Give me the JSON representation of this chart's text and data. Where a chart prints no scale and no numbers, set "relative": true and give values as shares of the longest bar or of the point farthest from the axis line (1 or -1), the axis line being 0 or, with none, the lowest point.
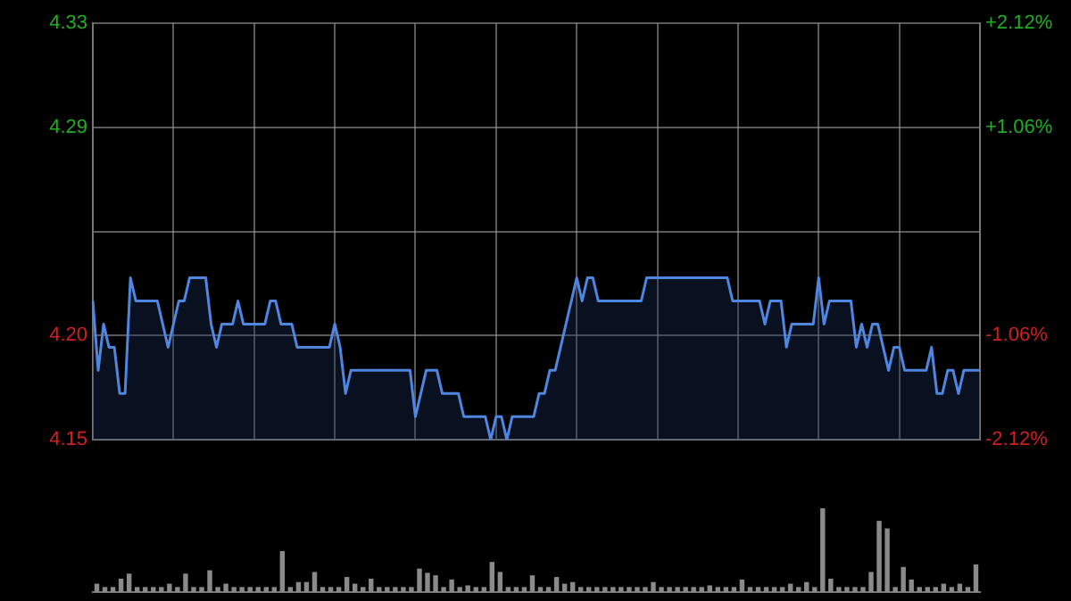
{
  "chart_data": [
    {
      "type": "area",
      "color": "#4f86e0",
      "categories": [
        null,
        null,
        null,
        null,
        null,
        null,
        null,
        null,
        null,
        null,
        null,
        null,
        null,
        null,
        null,
        null,
        null,
        null,
        null,
        null,
        null,
        null,
        null,
        null,
        null,
        null,
        null,
        null,
        null,
        null,
        null,
        null,
        null,
        null,
        null,
        null,
        null,
        null,
        null,
        null,
        null,
        null,
        null,
        null,
        null,
        null,
        null,
        null,
        null,
        null,
        null,
        null,
        null,
        null,
        null,
        null,
        null,
        null,
        null,
        null,
        null,
        null,
        null,
        null,
        null,
        null,
        null,
        null,
        null,
        null,
        null,
        null,
        null,
        null,
        null,
        null,
        null,
        null,
        null,
        null,
        null,
        null,
        null,
        null,
        null,
        null,
        null,
        null,
        null,
        null,
        null,
        null,
        null,
        null,
        null,
        null,
        null,
        null,
        null,
        null,
        null,
        null,
        null,
        null,
        null,
        null,
        null,
        null,
        null,
        null,
        null,
        null,
        null,
        null,
        null,
        null,
        null,
        null,
        null,
        null,
        null,
        null,
        null,
        null,
        null,
        null,
        null,
        null,
        null,
        null,
        null,
        null,
        null,
        null,
        null,
        null,
        null,
        null,
        null,
        null,
        null,
        null,
        null,
        null,
        null,
        null,
        null,
        null,
        null,
        null,
        null,
        null,
        null,
        null,
        null,
        null,
        null,
        null,
        null,
        null,
        null,
        null,
        null,
        null,
        null,
        null
      ],
      "values": [
        4.21,
        4.18,
        4.2,
        4.19,
        4.19,
        4.17,
        4.17,
        4.22,
        4.21,
        4.21,
        4.21,
        4.21,
        4.21,
        4.2,
        4.19,
        4.2,
        4.21,
        4.21,
        4.22,
        4.22,
        4.22,
        4.22,
        4.2,
        4.19,
        4.2,
        4.2,
        4.2,
        4.21,
        4.2,
        4.2,
        4.2,
        4.2,
        4.2,
        4.21,
        4.21,
        4.2,
        4.2,
        4.2,
        4.19,
        4.19,
        4.19,
        4.19,
        4.19,
        4.19,
        4.19,
        4.2,
        4.19,
        4.17,
        4.18,
        4.18,
        4.18,
        4.18,
        4.18,
        4.18,
        4.18,
        4.18,
        4.18,
        4.18,
        4.18,
        4.18,
        4.16,
        4.17,
        4.18,
        4.18,
        4.18,
        4.17,
        4.17,
        4.17,
        4.17,
        4.16,
        4.16,
        4.16,
        4.16,
        4.16,
        4.15,
        4.16,
        4.16,
        4.15,
        4.16,
        4.16,
        4.16,
        4.16,
        4.16,
        4.17,
        4.17,
        4.18,
        4.18,
        4.19,
        4.2,
        4.21,
        4.22,
        4.21,
        4.22,
        4.22,
        4.21,
        4.21,
        4.21,
        4.21,
        4.21,
        4.21,
        4.21,
        4.21,
        4.21,
        4.22,
        4.22,
        4.22,
        4.22,
        4.22,
        4.22,
        4.22,
        4.22,
        4.22,
        4.22,
        4.22,
        4.22,
        4.22,
        4.22,
        4.22,
        4.22,
        4.21,
        4.21,
        4.21,
        4.21,
        4.21,
        4.21,
        4.2,
        4.21,
        4.21,
        4.21,
        4.19,
        4.2,
        4.2,
        4.2,
        4.2,
        4.2,
        4.22,
        4.2,
        4.21,
        4.21,
        4.21,
        4.21,
        4.21,
        4.19,
        4.2,
        4.19,
        4.2,
        4.2,
        4.19,
        4.18,
        4.19,
        4.19,
        4.18,
        4.18,
        4.18,
        4.18,
        4.18,
        4.19,
        4.17,
        4.17,
        4.18,
        4.18,
        4.17,
        4.18,
        4.18,
        4.18,
        4.18
      ],
      "ylim": [
        4.15,
        4.33
      ],
      "yticks": [
        4.15,
        {
          "value": 4.195,
          "label": "4.20"
        },
        {
          "value": 4.24,
          "label": null
        },
        {
          "value": 4.285,
          "label": "4.29"
        },
        4.33
      ],
      "y2lim": [
        -2.12,
        2.12
      ],
      "y2ticks": [
        {
          "value": -2.12,
          "label": "-2.12%"
        },
        {
          "value": -1.06,
          "label": "-1.06%"
        },
        {
          "value": 1.06,
          "label": "+1.06%"
        },
        {
          "value": 2.12,
          "label": "+2.12%"
        }
      ],
      "grid": true
    },
    {
      "type": "bar",
      "relative": true,
      "color": "#8a8a8a",
      "categories": [
        null,
        null,
        null,
        null,
        null,
        null,
        null,
        null,
        null,
        null,
        null,
        null,
        null,
        null,
        null,
        null,
        null,
        null,
        null,
        null,
        null,
        null,
        null,
        null,
        null,
        null,
        null,
        null,
        null,
        null,
        null,
        null,
        null,
        null,
        null,
        null,
        null,
        null,
        null,
        null,
        null,
        null,
        null,
        null,
        null,
        null,
        null,
        null,
        null,
        null,
        null,
        null,
        null,
        null,
        null,
        null,
        null,
        null,
        null,
        null,
        null,
        null,
        null,
        null,
        null,
        null,
        null,
        null,
        null,
        null,
        null,
        null,
        null,
        null,
        null,
        null,
        null,
        null,
        null,
        null,
        null,
        null,
        null,
        null,
        null,
        null,
        null,
        null,
        null,
        null,
        null,
        null,
        null,
        null,
        null,
        null,
        null,
        null,
        null,
        null,
        null,
        null,
        null,
        null,
        null,
        null,
        null,
        null,
        null,
        null
      ],
      "values": [
        0.1,
        0.06,
        0.06,
        0.16,
        0.22,
        0.06,
        0.06,
        0.06,
        0.06,
        0.1,
        0.06,
        0.22,
        0.06,
        0.06,
        0.26,
        0.06,
        0.1,
        0.06,
        0.06,
        0.06,
        0.06,
        0.06,
        0.06,
        0.49,
        0.06,
        0.12,
        0.12,
        0.24,
        0.06,
        0.06,
        0.06,
        0.18,
        0.1,
        0.06,
        0.16,
        0.06,
        0.06,
        0.06,
        0.06,
        0.06,
        0.28,
        0.23,
        0.2,
        0.06,
        0.15,
        0.06,
        0.08,
        0.06,
        0.06,
        0.36,
        0.24,
        0.06,
        0.06,
        0.06,
        0.2,
        0.06,
        0.06,
        0.18,
        0.1,
        0.12,
        0.06,
        0.06,
        0.06,
        0.06,
        0.06,
        0.06,
        0.06,
        0.06,
        0.06,
        0.12,
        0.06,
        0.06,
        0.06,
        0.06,
        0.06,
        0.06,
        0.08,
        0.06,
        0.06,
        0.06,
        0.15,
        0.06,
        0.06,
        0.06,
        0.06,
        0.06,
        0.1,
        0.06,
        0.12,
        0.06,
        1,
        0.16,
        0.06,
        0.06,
        0.06,
        0.06,
        0.24,
        0.85,
        0.76,
        0.06,
        0.3,
        0.15,
        0.06,
        0.06,
        0.06,
        0.1,
        0.06,
        0.1,
        0.06,
        0.33
      ]
    }
  ]
}
